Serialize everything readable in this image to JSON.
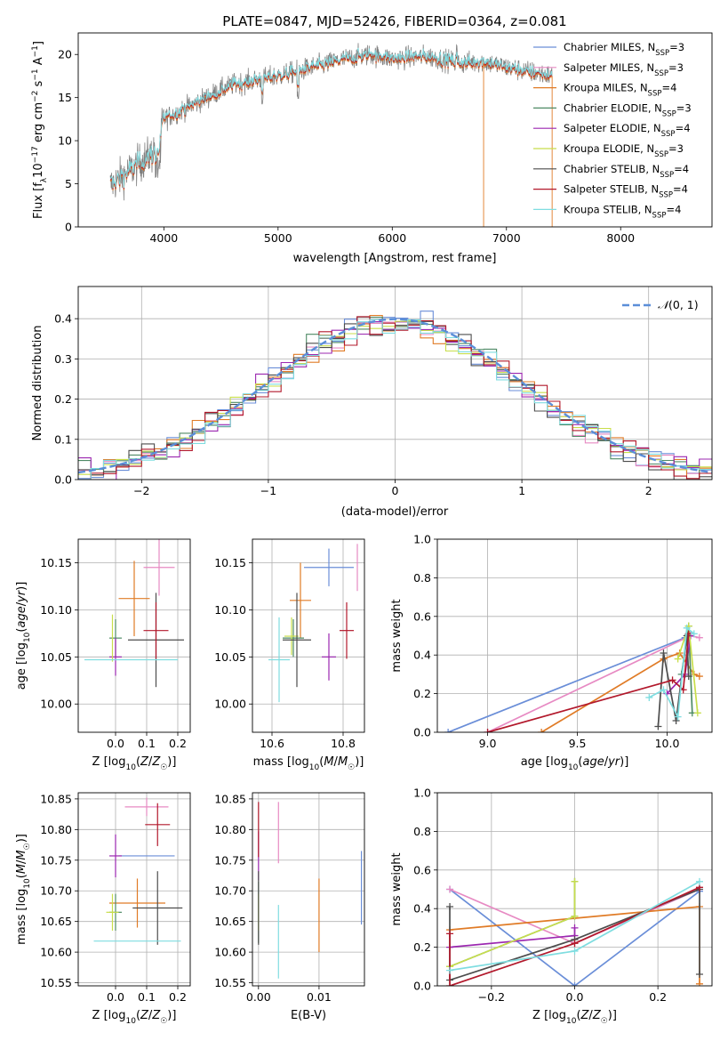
{
  "figure": {
    "title": "PLATE=0847, MJD=52426, FIBERID=0364, z=0.081"
  },
  "colors": {
    "Chabrier MILES": "#6a8ed8",
    "Salpeter MILES": "#e78ac3",
    "Kroupa MILES": "#e07b26",
    "Chabrier ELODIE": "#4f8a66",
    "Salpeter ELODIE": "#9b27b0",
    "Kroupa ELODIE": "#c8de4b",
    "Chabrier STELIB": "#4d4d4d",
    "Salpeter STELIB": "#b2182b",
    "Kroupa STELIB": "#7fdde0",
    "normal": "#5b8ed8",
    "data": "#808080"
  },
  "chart_data": [
    {
      "id": "spectrum",
      "type": "line",
      "xlabel": "wavelength [Angstrom, rest frame]",
      "ylabel": "Flux [f_λ 10^-17 erg cm^-2 s^-1 A^-1]",
      "xlim": [
        3250,
        8800
      ],
      "ylim": [
        0,
        22.5
      ],
      "xticks": [
        4000,
        5000,
        6000,
        7000,
        8000
      ],
      "yticks": [
        0,
        5,
        10,
        15,
        20
      ],
      "legend_position": "right",
      "series": [
        {
          "name": "Chabrier MILES, N_SSP=3",
          "nssp": "3"
        },
        {
          "name": "Salpeter MILES, N_SSP=3",
          "nssp": "3"
        },
        {
          "name": "Kroupa MILES, N_SSP=4",
          "nssp": "4"
        },
        {
          "name": "Chabrier ELODIE, N_SSP=3",
          "nssp": "3"
        },
        {
          "name": "Salpeter ELODIE, N_SSP=4",
          "nssp": "4"
        },
        {
          "name": "Kroupa ELODIE, N_SSP=3",
          "nssp": "3"
        },
        {
          "name": "Chabrier STELIB, N_SSP=4",
          "nssp": "4"
        },
        {
          "name": "Salpeter STELIB, N_SSP=4",
          "nssp": "4"
        },
        {
          "name": "Kroupa STELIB, N_SSP=4",
          "nssp": "4"
        }
      ],
      "continuum": {
        "x": [
          3500,
          3700,
          3900,
          4000,
          4300,
          4600,
          5000,
          5300,
          5600,
          5800,
          6000,
          6300,
          6600,
          6800,
          7000,
          7200,
          7400
        ],
        "y": [
          4.5,
          6.5,
          8.5,
          12.5,
          14.5,
          16.5,
          17.5,
          18.5,
          19.5,
          20.0,
          19.5,
          19.8,
          19.0,
          19.2,
          18.5,
          18.0,
          17.5
        ]
      }
    },
    {
      "id": "residuals",
      "type": "histogram",
      "xlabel": "(data-model)/error",
      "ylabel": "Normed distribution",
      "xlim": [
        -2.5,
        2.5
      ],
      "ylim": [
        0,
        0.48
      ],
      "xticks": [
        -2,
        -1,
        0,
        1,
        2
      ],
      "yticks": [
        0.0,
        0.1,
        0.2,
        0.3,
        0.4
      ],
      "grid": true,
      "legend": "N(0,1)",
      "legend_position": "top-right",
      "bin_width": 0.1
    },
    {
      "id": "age-Z",
      "type": "errorbar",
      "xlabel": "Z [log10(Z/Z☉)]",
      "ylabel": "age [log10(age/yr)]",
      "xlim": [
        -0.12,
        0.24
      ],
      "ylim": [
        9.97,
        10.175
      ],
      "xticks": [
        0.0,
        0.1,
        0.2
      ],
      "yticks": [
        10.0,
        10.05,
        10.1,
        10.15
      ],
      "points": [
        {
          "model": "Chabrier MILES",
          "x": 0.0,
          "xerr": 0.0,
          "y": 10.07,
          "yerr": 0.0
        },
        {
          "model": "Salpeter MILES",
          "x": 0.14,
          "xerr": 0.05,
          "y": 10.145,
          "yerr": 0.03
        },
        {
          "model": "Kroupa MILES",
          "x": 0.06,
          "xerr": 0.05,
          "y": 10.112,
          "yerr": 0.04
        },
        {
          "model": "Chabrier ELODIE",
          "x": 0.0,
          "xerr": 0.02,
          "y": 10.07,
          "yerr": 0.02
        },
        {
          "model": "Salpeter ELODIE",
          "x": 0.0,
          "xerr": 0.02,
          "y": 10.05,
          "yerr": 0.02
        },
        {
          "model": "Kroupa ELODIE",
          "x": -0.01,
          "xerr": 0.0,
          "y": 10.07,
          "yerr": 0.025
        },
        {
          "model": "Chabrier STELIB",
          "x": 0.13,
          "xerr": 0.09,
          "y": 10.068,
          "yerr": 0.05
        },
        {
          "model": "Salpeter STELIB",
          "x": 0.13,
          "xerr": 0.04,
          "y": 10.078,
          "yerr": 0.03
        },
        {
          "model": "Kroupa STELIB",
          "x": 0.05,
          "xerr": 0.15,
          "y": 10.047,
          "yerr": 0.0
        }
      ]
    },
    {
      "id": "age-mass",
      "type": "errorbar",
      "xlabel": "mass [log10(M/M☉)]",
      "ylabel": "",
      "xlim": [
        10.545,
        10.86
      ],
      "ylim": [
        9.97,
        10.175
      ],
      "xticks": [
        10.6,
        10.8
      ],
      "yticks": [
        10.0,
        10.05,
        10.1,
        10.15
      ],
      "points": [
        {
          "model": "Chabrier MILES",
          "x": 10.76,
          "xerr": 0.07,
          "y": 10.145,
          "yerr": 0.02
        },
        {
          "model": "Salpeter MILES",
          "x": 10.84,
          "xerr": 0.0,
          "y": 10.145,
          "yerr": 0.025
        },
        {
          "model": "Kroupa MILES",
          "x": 10.68,
          "xerr": 0.03,
          "y": 10.11,
          "yerr": 0.04
        },
        {
          "model": "Chabrier ELODIE",
          "x": 10.66,
          "xerr": 0.03,
          "y": 10.07,
          "yerr": 0.02
        },
        {
          "model": "Salpeter ELODIE",
          "x": 10.76,
          "xerr": 0.02,
          "y": 10.05,
          "yerr": 0.025
        },
        {
          "model": "Kroupa ELODIE",
          "x": 10.655,
          "xerr": 0.02,
          "y": 10.072,
          "yerr": 0.02
        },
        {
          "model": "Chabrier STELIB",
          "x": 10.67,
          "xerr": 0.04,
          "y": 10.068,
          "yerr": 0.05
        },
        {
          "model": "Salpeter STELIB",
          "x": 10.81,
          "xerr": 0.02,
          "y": 10.078,
          "yerr": 0.03
        },
        {
          "model": "Kroupa STELIB",
          "x": 10.62,
          "xerr": 0.03,
          "y": 10.047,
          "yerr": 0.045
        }
      ]
    },
    {
      "id": "weight-age",
      "type": "line",
      "xlabel": "age [log10(age/yr)]",
      "ylabel": "mass weight",
      "xlim": [
        8.72,
        10.25
      ],
      "ylim": [
        0,
        1
      ],
      "xticks": [
        9.0,
        9.5,
        10.0
      ],
      "yticks": [
        0.0,
        0.2,
        0.4,
        0.6,
        0.8,
        1.0
      ],
      "grid": true,
      "series": [
        {
          "model": "Chabrier MILES",
          "x": [
            8.78,
            10.1,
            10.13
          ],
          "y": [
            0.0,
            0.49,
            0.5
          ]
        },
        {
          "model": "Salpeter MILES",
          "x": [
            9.0,
            10.13,
            10.18
          ],
          "y": [
            0.0,
            0.5,
            0.49
          ]
        },
        {
          "model": "Kroupa MILES",
          "x": [
            9.3,
            9.98,
            10.07,
            10.15,
            10.18
          ],
          "y": [
            0.0,
            0.38,
            0.41,
            0.3,
            0.29
          ]
        },
        {
          "model": "Chabrier ELODIE",
          "x": [
            10.08,
            10.12,
            10.14
          ],
          "y": [
            0.3,
            0.55,
            0.1
          ]
        },
        {
          "model": "Salpeter ELODIE",
          "x": [
            10.0,
            10.1,
            10.13
          ],
          "y": [
            0.2,
            0.3,
            0.5
          ]
        },
        {
          "model": "Kroupa ELODIE",
          "x": [
            10.06,
            10.12,
            10.17
          ],
          "y": [
            0.38,
            0.55,
            0.1
          ]
        },
        {
          "model": "Chabrier STELIB",
          "x": [
            9.95,
            9.98,
            10.05,
            10.11,
            10.12
          ],
          "y": [
            0.03,
            0.41,
            0.06,
            0.5,
            0.29
          ]
        },
        {
          "model": "Salpeter STELIB",
          "x": [
            9.0,
            10.03,
            10.09,
            10.12
          ],
          "y": [
            0.0,
            0.27,
            0.22,
            0.51
          ]
        },
        {
          "model": "Kroupa STELIB",
          "x": [
            9.9,
            9.98,
            10.06,
            10.11,
            10.15
          ],
          "y": [
            0.18,
            0.22,
            0.08,
            0.54,
            0.51
          ]
        }
      ]
    },
    {
      "id": "mass-Z",
      "type": "errorbar",
      "xlabel": "Z [log10(Z/Z☉)]",
      "ylabel": "mass [log10(M/M☉)]",
      "xlim": [
        -0.12,
        0.24
      ],
      "ylim": [
        10.545,
        10.86
      ],
      "xticks": [
        0.0,
        0.1,
        0.2
      ],
      "yticks": [
        10.55,
        10.6,
        10.65,
        10.7,
        10.75,
        10.8,
        10.85
      ],
      "points": [
        {
          "model": "Chabrier MILES",
          "x": 0.1,
          "xerr": 0.09,
          "y": 10.757,
          "yerr": 0.0
        },
        {
          "model": "Salpeter MILES",
          "x": 0.1,
          "xerr": 0.07,
          "y": 10.837,
          "yerr": 0.015
        },
        {
          "model": "Kroupa MILES",
          "x": 0.07,
          "xerr": 0.09,
          "y": 10.68,
          "yerr": 0.04
        },
        {
          "model": "Chabrier ELODIE",
          "x": 0.0,
          "xerr": 0.02,
          "y": 10.665,
          "yerr": 0.03
        },
        {
          "model": "Salpeter ELODIE",
          "x": 0.0,
          "xerr": 0.02,
          "y": 10.757,
          "yerr": 0.035
        },
        {
          "model": "Kroupa ELODIE",
          "x": -0.01,
          "xerr": 0.02,
          "y": 10.665,
          "yerr": 0.03
        },
        {
          "model": "Chabrier STELIB",
          "x": 0.135,
          "xerr": 0.08,
          "y": 10.672,
          "yerr": 0.06
        },
        {
          "model": "Salpeter STELIB",
          "x": 0.135,
          "xerr": 0.04,
          "y": 10.808,
          "yerr": 0.035
        },
        {
          "model": "Kroupa STELIB",
          "x": 0.07,
          "xerr": 0.14,
          "y": 10.618,
          "yerr": 0.0
        }
      ]
    },
    {
      "id": "mass-EBV",
      "type": "errorbar",
      "xlabel": "E(B-V)",
      "ylabel": "",
      "xlim": [
        -0.001,
        0.0175
      ],
      "ylim": [
        10.545,
        10.86
      ],
      "xticks": [
        0.0,
        0.01
      ],
      "yticks": [
        10.55,
        10.6,
        10.65,
        10.7,
        10.75,
        10.8,
        10.85
      ],
      "points": [
        {
          "model": "Chabrier MILES",
          "x": 0.017,
          "xerr": 0.0,
          "y": 10.705,
          "yerr": 0.06
        },
        {
          "model": "Salpeter MILES",
          "x": 0.0033,
          "xerr": 0.0,
          "y": 10.795,
          "yerr": 0.05
        },
        {
          "model": "Kroupa MILES",
          "x": 0.01,
          "xerr": 0.0,
          "y": 10.66,
          "yerr": 0.06
        },
        {
          "model": "Chabrier ELODIE",
          "x": 0.0,
          "xerr": 0.0,
          "y": 10.665,
          "yerr": 0.05
        },
        {
          "model": "Salpeter ELODIE",
          "x": 0.0,
          "xerr": 0.0,
          "y": 10.757,
          "yerr": 0.04
        },
        {
          "model": "Kroupa ELODIE",
          "x": 0.0,
          "xerr": 0.0,
          "y": 10.665,
          "yerr": 0.03
        },
        {
          "model": "Chabrier STELIB",
          "x": 0.0,
          "xerr": 0.0,
          "y": 10.672,
          "yerr": 0.06
        },
        {
          "model": "Salpeter STELIB",
          "x": 0.0,
          "xerr": 0.0,
          "y": 10.8,
          "yerr": 0.045
        },
        {
          "model": "Kroupa STELIB",
          "x": 0.0033,
          "xerr": 0.0,
          "y": 10.617,
          "yerr": 0.06
        }
      ]
    },
    {
      "id": "weight-Z",
      "type": "line",
      "xlabel": "Z [log10(Z/Z☉)]",
      "ylabel": "mass weight",
      "xlim": [
        -0.33,
        0.33
      ],
      "ylim": [
        0,
        1
      ],
      "xticks": [
        -0.2,
        0.0,
        0.2
      ],
      "yticks": [
        0.0,
        0.2,
        0.4,
        0.6,
        0.8,
        1.0
      ],
      "grid": true,
      "series": [
        {
          "model": "Chabrier MILES",
          "x": [
            -0.3,
            0.0,
            0.3
          ],
          "y": [
            0.5,
            0.0,
            0.49
          ]
        },
        {
          "model": "Salpeter MILES",
          "x": [
            -0.3,
            0.0,
            0.3
          ],
          "y": [
            0.5,
            0.22,
            0.5
          ]
        },
        {
          "model": "Kroupa MILES",
          "x": [
            -0.3,
            0.3,
            0.3
          ],
          "y": [
            0.29,
            0.41,
            0.01
          ]
        },
        {
          "model": "Chabrier ELODIE",
          "x": [
            -0.3,
            0.0,
            0.0
          ],
          "y": [
            0.1,
            0.36,
            0.54
          ]
        },
        {
          "model": "Salpeter ELODIE",
          "x": [
            -0.3,
            0.0,
            0.0
          ],
          "y": [
            0.2,
            0.26,
            0.3
          ]
        },
        {
          "model": "Kroupa ELODIE",
          "x": [
            -0.3,
            0.0,
            0.0
          ],
          "y": [
            0.1,
            0.36,
            0.54
          ]
        },
        {
          "model": "Chabrier STELIB",
          "x": [
            -0.3,
            -0.3,
            0.0,
            0.3,
            0.3
          ],
          "y": [
            0.41,
            0.03,
            0.24,
            0.5,
            0.06
          ]
        },
        {
          "model": "Salpeter STELIB",
          "x": [
            -0.3,
            -0.3,
            0.0,
            0.3
          ],
          "y": [
            0.27,
            0.0,
            0.22,
            0.51
          ]
        },
        {
          "model": "Kroupa STELIB",
          "x": [
            -0.3,
            0.0,
            0.3
          ],
          "y": [
            0.08,
            0.18,
            0.54
          ]
        }
      ]
    }
  ]
}
